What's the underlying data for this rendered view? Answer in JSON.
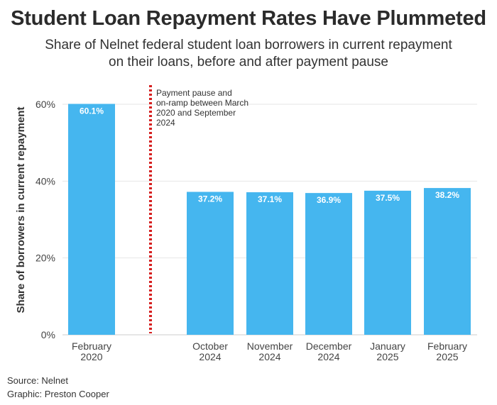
{
  "title": "Student Loan Repayment Rates Have Plummeted",
  "subtitle": "Share of Nelnet federal student loan borrowers in current repayment on their loans, before and after payment pause",
  "footer": {
    "source": "Source: Nelnet",
    "graphic": "Graphic: Preston Cooper"
  },
  "colors": {
    "bar": "#45b6ef",
    "pause_line": "#d62020",
    "grid": "#e6e6e6"
  },
  "chart_data": {
    "type": "bar",
    "categories": [
      [
        "February",
        "2020"
      ],
      [
        "October",
        "2024"
      ],
      [
        "November",
        "2024"
      ],
      [
        "December",
        "2024"
      ],
      [
        "January",
        "2025"
      ],
      [
        "February",
        "2025"
      ]
    ],
    "values": [
      60.1,
      37.2,
      37.1,
      36.9,
      37.5,
      38.2
    ],
    "data_labels": [
      "60.1%",
      "37.2%",
      "37.1%",
      "36.9%",
      "37.5%",
      "38.2%"
    ],
    "ylabel": "Share of borrowers in current repayment",
    "ylim": [
      0,
      60
    ],
    "yticks": [
      0,
      20,
      40,
      60
    ],
    "ytick_labels": [
      "0%",
      "20%",
      "40%",
      "60%"
    ],
    "grid": true,
    "annotation": {
      "lines": [
        "Payment pause and",
        "on-ramp between March",
        "2020 and September",
        "2024"
      ],
      "style": "dotted vertical line between first and second bar"
    }
  }
}
